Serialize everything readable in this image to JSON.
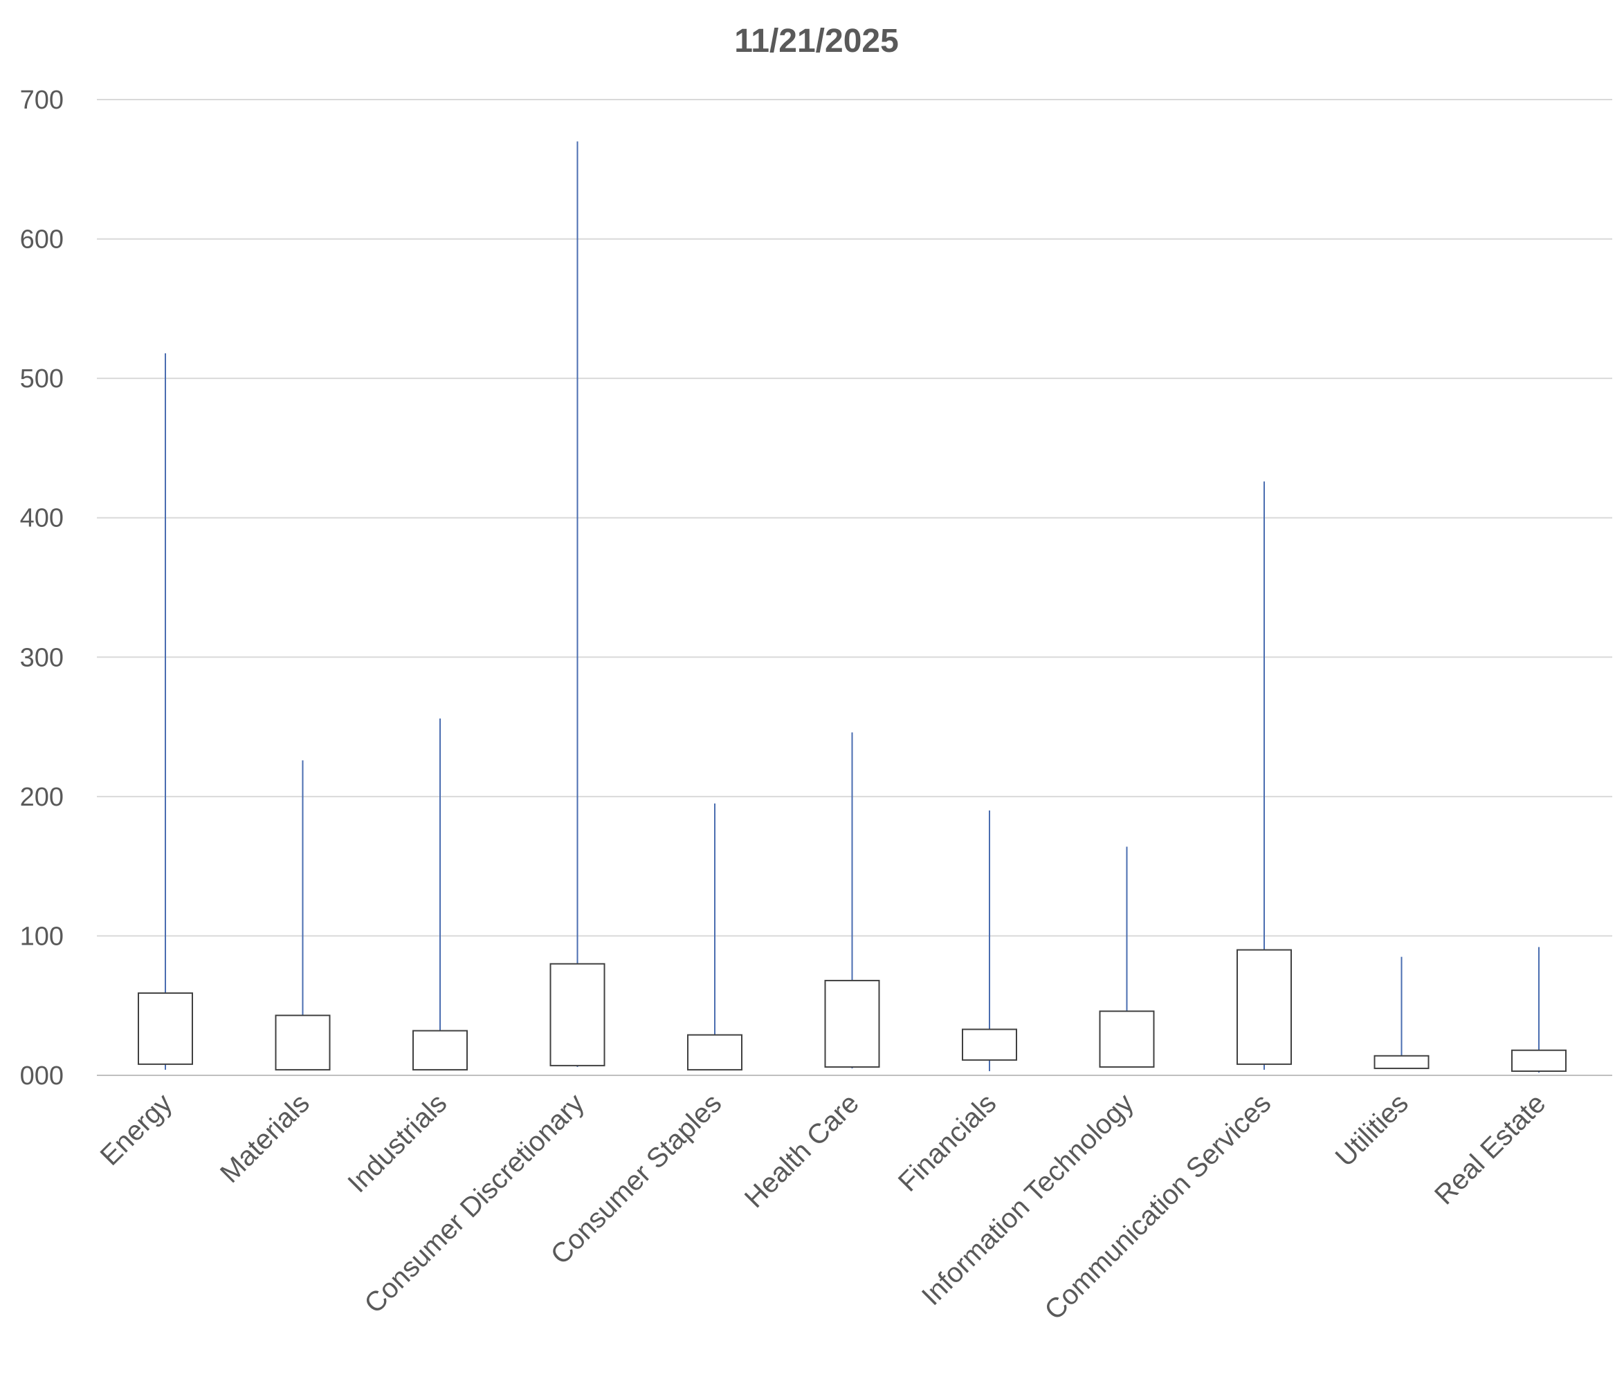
{
  "chart_data": {
    "type": "box",
    "title": "11/21/2025",
    "xlabel": "",
    "ylabel": "",
    "ylim": [
      0,
      700
    ],
    "yticks": [
      0,
      100,
      200,
      300,
      400,
      500,
      600,
      700
    ],
    "ytick_labels": [
      "000",
      "100",
      "200",
      "300",
      "400",
      "500",
      "600",
      "700"
    ],
    "grid": true,
    "legend": "none",
    "colors": {
      "box_stroke": "#404040",
      "whisker": "#4a6db0",
      "grid": "#d9d9d9",
      "text": "#595959"
    },
    "categories": [
      "Energy",
      "Materials",
      "Industrials",
      "Consumer Discretionary",
      "Consumer Staples",
      "Health Care",
      "Financials",
      "Information Technology",
      "Communication Services",
      "Utilities",
      "Real Estate"
    ],
    "series": [
      {
        "low": [
          4,
          4,
          4,
          6,
          4,
          5,
          3,
          6,
          4,
          5,
          2
        ],
        "q1": [
          8,
          4,
          4,
          7,
          4,
          6,
          11,
          6,
          8,
          5,
          3
        ],
        "q3": [
          59,
          43,
          32,
          80,
          29,
          68,
          33,
          46,
          90,
          14,
          18
        ],
        "high": [
          518,
          226,
          256,
          670,
          195,
          246,
          190,
          164,
          426,
          85,
          92
        ]
      }
    ]
  }
}
